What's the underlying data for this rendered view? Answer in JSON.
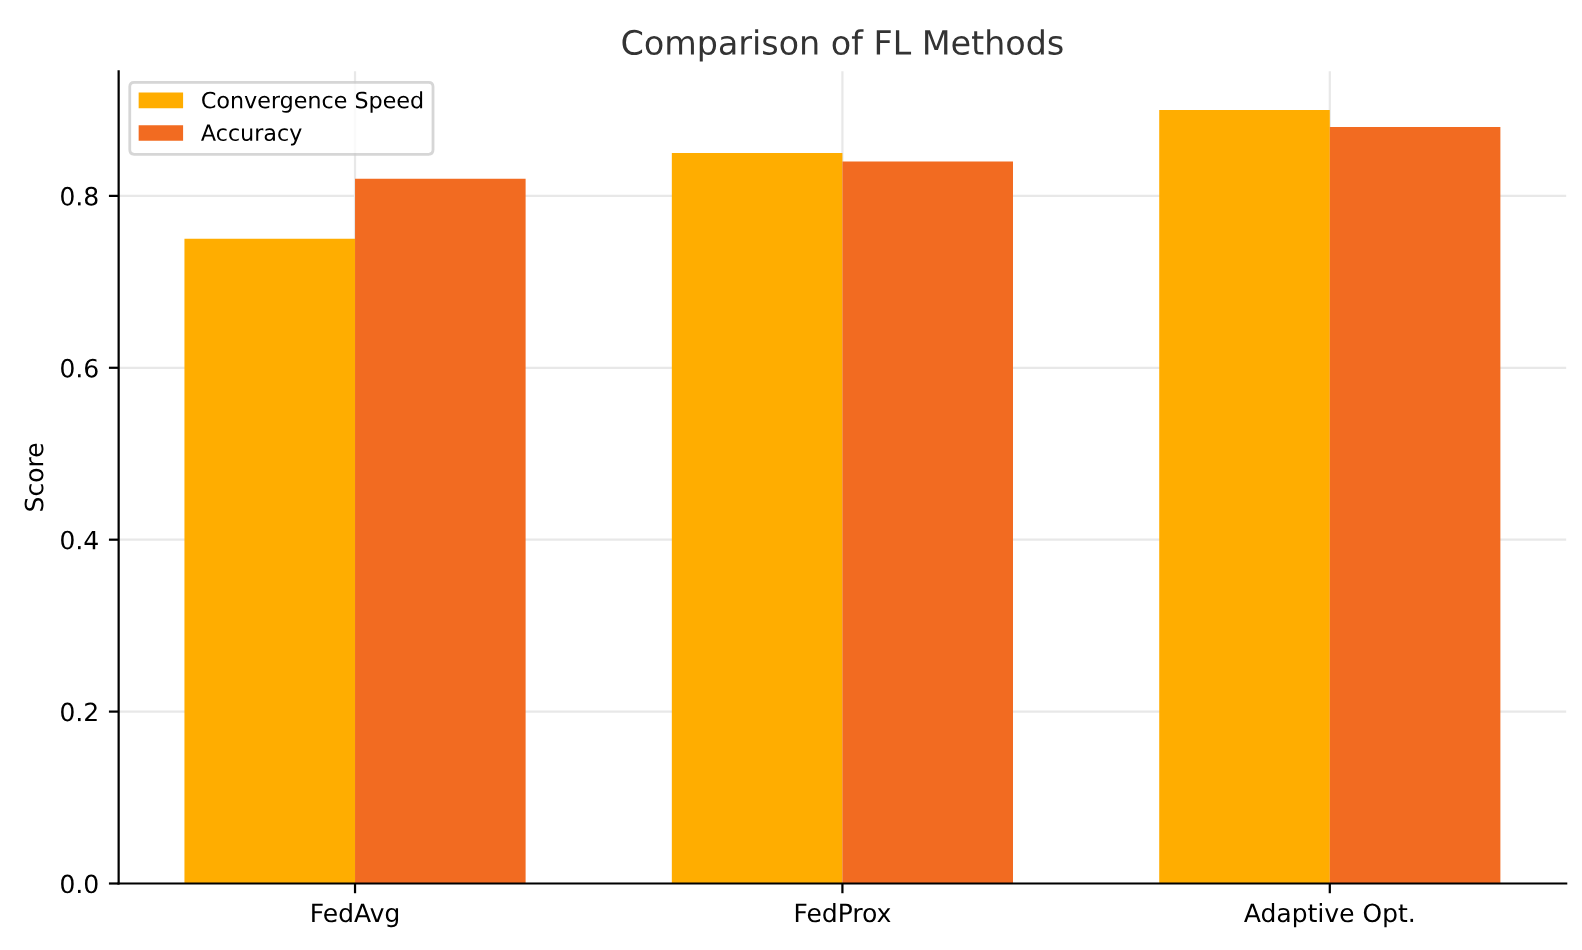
{
  "chart_data": {
    "type": "bar",
    "title": "Comparison of FL Methods",
    "ylabel": "Score",
    "categories": [
      "FedAvg",
      "FedProx",
      "Adaptive Opt."
    ],
    "series": [
      {
        "name": "Convergence Speed",
        "color": "#ffad00",
        "values": [
          0.75,
          0.85,
          0.9
        ]
      },
      {
        "name": "Accuracy",
        "color": "#f26b21",
        "values": [
          0.82,
          0.84,
          0.88
        ]
      }
    ],
    "ylim": [
      0,
      0.945
    ],
    "yticks": [
      {
        "value": 0,
        "label": "0.0"
      },
      0.2,
      0.4,
      0.6,
      0.8
    ],
    "grid": true,
    "legend": "top left"
  }
}
